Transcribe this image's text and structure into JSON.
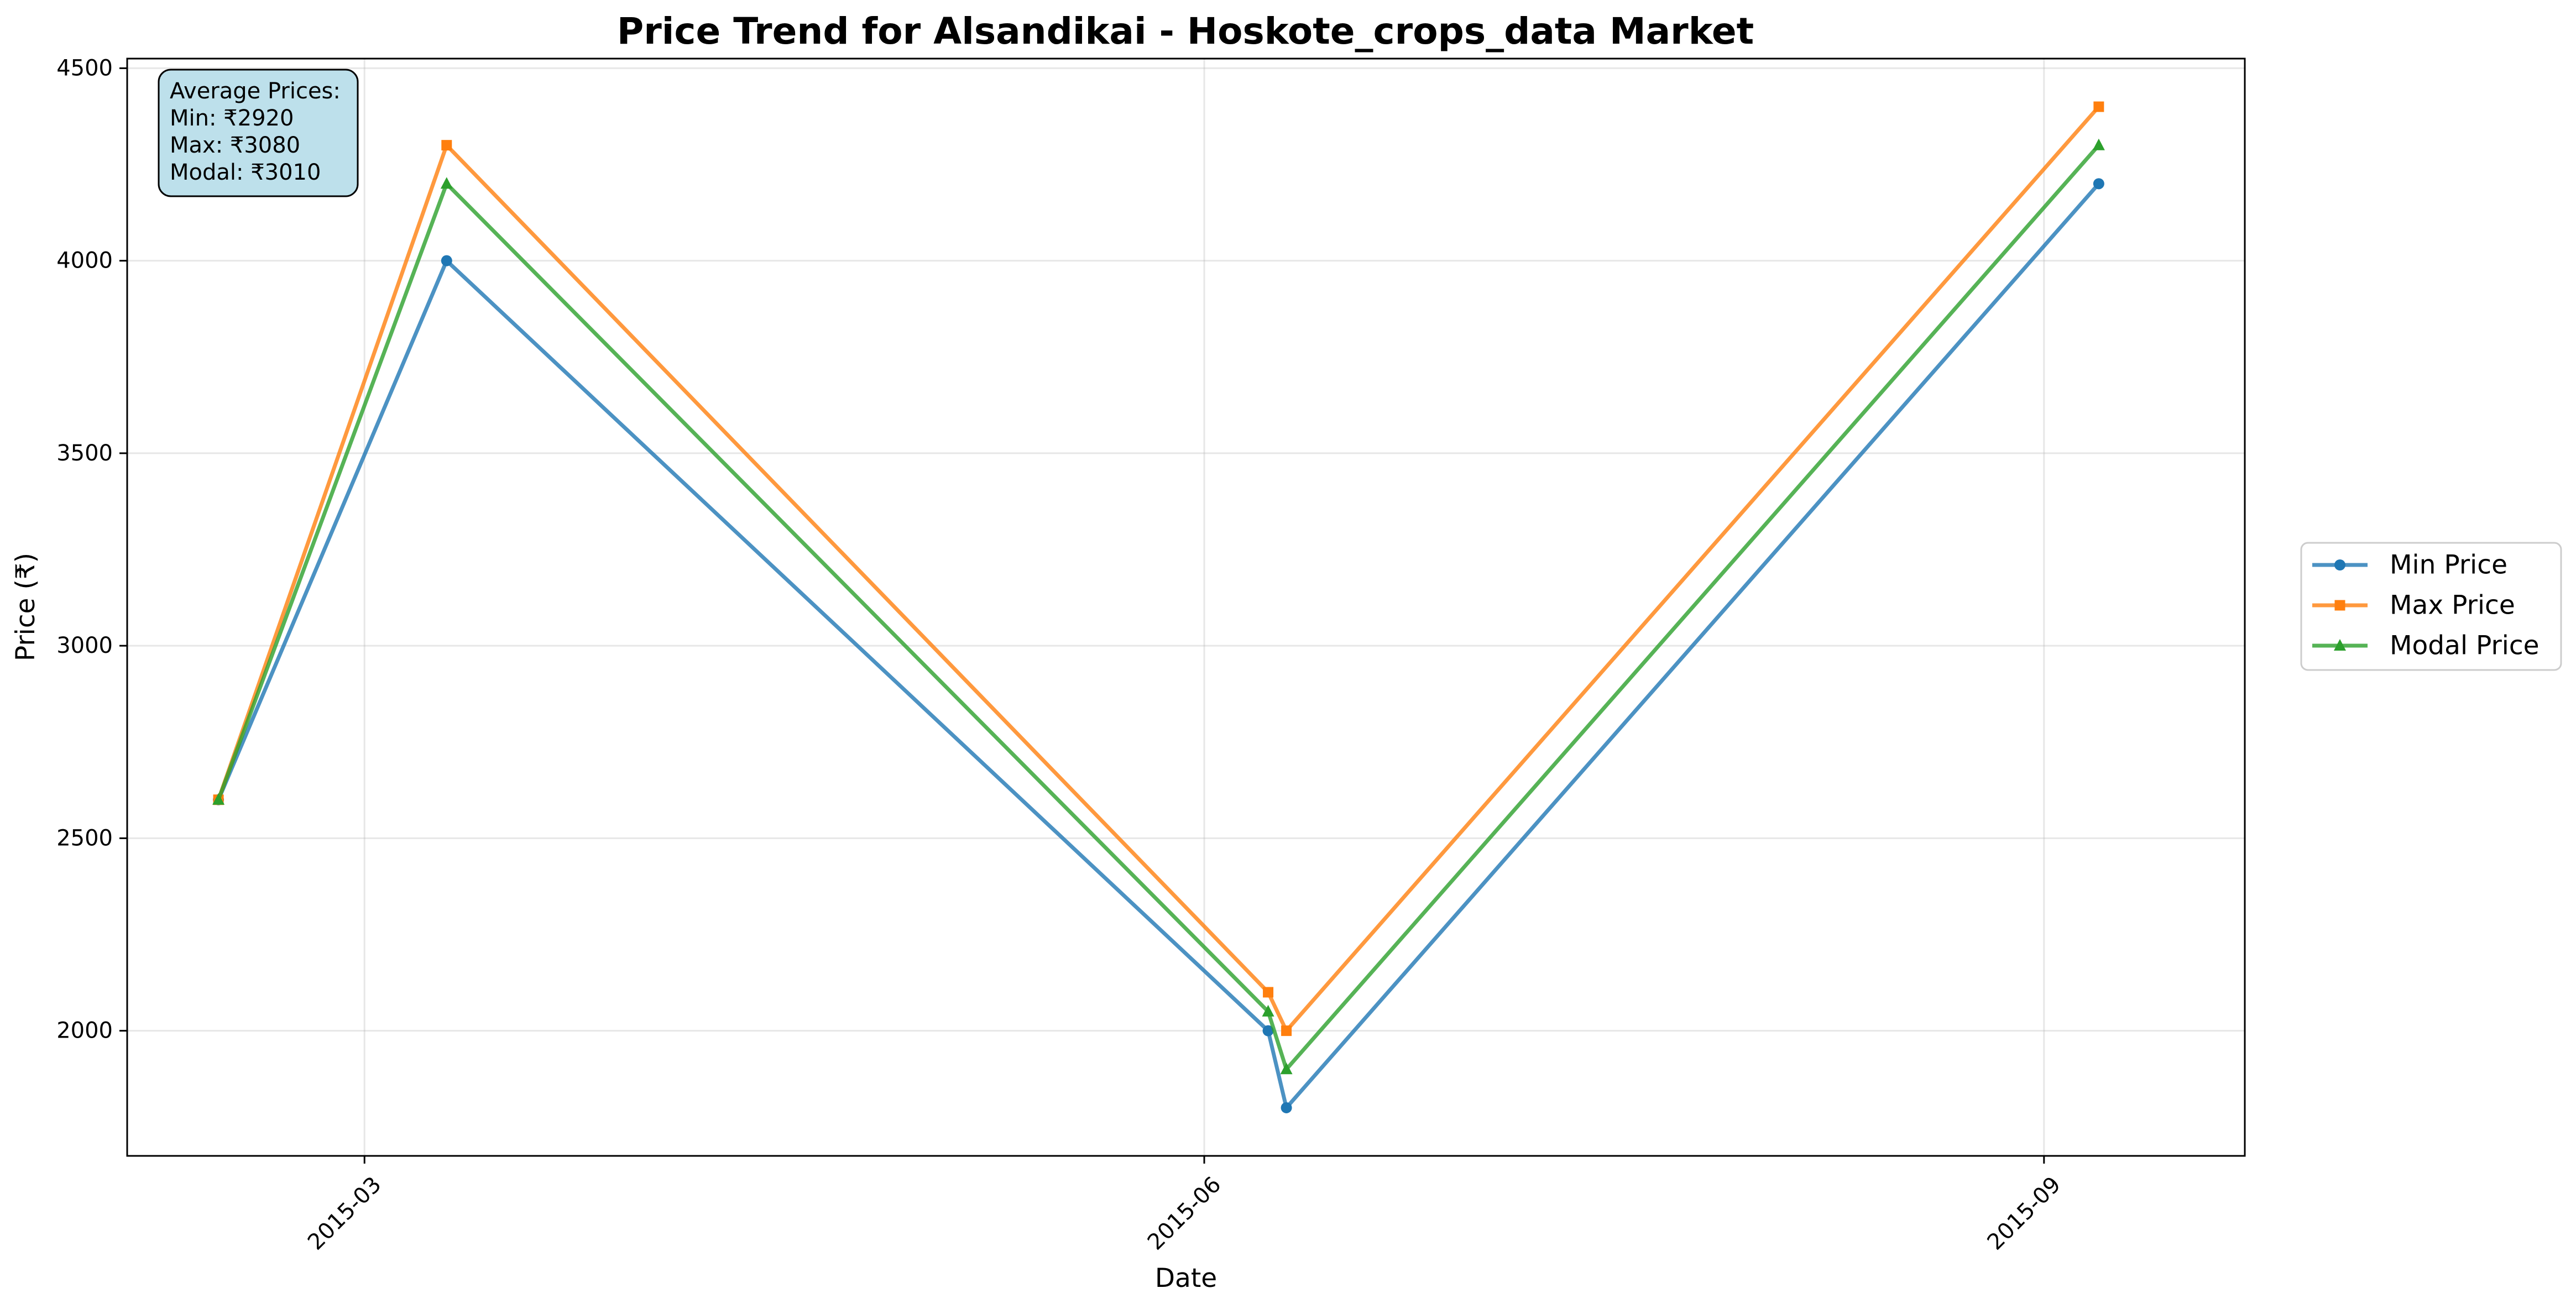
{
  "chart_data": {
    "type": "line",
    "title": "Price Trend for Alsandikai - Hoskote_crops_data Market",
    "xlabel": "Date",
    "ylabel": "Price (₹)",
    "x": [
      "2015-02-13",
      "2015-03-10",
      "2015-06-08",
      "2015-06-10",
      "2015-09-07"
    ],
    "xlim": [
      "2015-02-03",
      "2015-09-23"
    ],
    "ylim": [
      1675,
      4525
    ],
    "x_ticks": [
      {
        "date": "2015-03-01",
        "label": "2015-03"
      },
      {
        "date": "2015-06-01",
        "label": "2015-06"
      },
      {
        "date": "2015-09-01",
        "label": "2015-09"
      }
    ],
    "y_ticks": [
      2000,
      2500,
      3000,
      3500,
      4000,
      4500
    ],
    "grid": true,
    "legend_position": "right",
    "series": [
      {
        "name": "Min Price",
        "color": "#1f77b4",
        "marker": "circle",
        "values": [
          2600,
          4000,
          2000,
          1800,
          4200
        ]
      },
      {
        "name": "Max Price",
        "color": "#ff7f0e",
        "marker": "square",
        "values": [
          2600,
          4300,
          2100,
          2000,
          4400
        ]
      },
      {
        "name": "Modal Price",
        "color": "#2ca02c",
        "marker": "triangle",
        "values": [
          2600,
          4200,
          2050,
          1900,
          4300
        ]
      }
    ],
    "annotation": {
      "lines": [
        "Average Prices:",
        "Min: ₹2920",
        "Max: ₹3080",
        "Modal: ₹3010"
      ],
      "background": "#add8e6"
    }
  }
}
